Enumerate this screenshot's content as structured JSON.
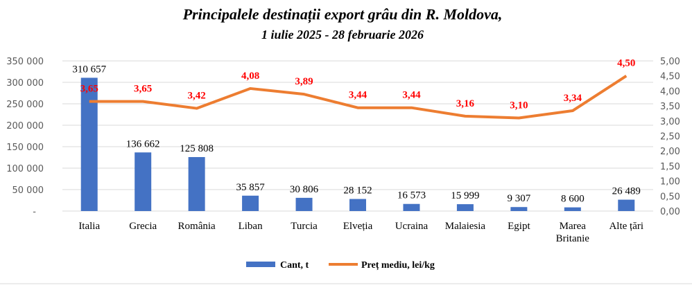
{
  "chart_data": {
    "type": "bar",
    "title": "Principalele destinații export grâu din R. Moldova,",
    "subtitle": "1 iulie 2025 - 28 februarie 2026",
    "categories": [
      [
        "Italia"
      ],
      [
        "Grecia"
      ],
      [
        "România"
      ],
      [
        "Liban"
      ],
      [
        "Turcia"
      ],
      [
        "Elveția"
      ],
      [
        "Ucraina"
      ],
      [
        "Malaiesia"
      ],
      [
        "Egipt"
      ],
      [
        "Marea",
        "Britanie"
      ],
      [
        "Alte țări"
      ]
    ],
    "series": [
      {
        "name": "Cant, t",
        "type": "bar",
        "axis": "left",
        "color": "#4472c4",
        "values": [
          310657,
          136662,
          125808,
          35857,
          30806,
          28152,
          16573,
          15999,
          9307,
          8600,
          26489
        ],
        "labels": [
          "310 657",
          "136 662",
          "125 808",
          "35 857",
          "30 806",
          "28 152",
          "16 573",
          "15 999",
          "9 307",
          "8 600",
          "26 489"
        ]
      },
      {
        "name": "Preț mediu, lei/kg",
        "type": "line",
        "axis": "right",
        "color": "#ed7d31",
        "values": [
          3.65,
          3.65,
          3.42,
          4.08,
          3.89,
          3.44,
          3.44,
          3.16,
          3.1,
          3.34,
          4.5
        ],
        "labels": [
          "3,65",
          "3,65",
          "3,42",
          "4,08",
          "3,89",
          "3,44",
          "3,44",
          "3,16",
          "3,10",
          "3,34",
          "4,50"
        ]
      }
    ],
    "y_left": {
      "range": [
        0,
        350000
      ],
      "ticks": [
        "-",
        "50 000",
        "100 000",
        "150 000",
        "200 000",
        "250 000",
        "300 000",
        "350 000"
      ]
    },
    "y_right": {
      "range": [
        0,
        5
      ],
      "ticks": [
        "0,00",
        "0,50",
        "1,00",
        "1,50",
        "2,00",
        "2,50",
        "3,00",
        "3,50",
        "4,00",
        "4,50",
        "5,00"
      ]
    },
    "grid": true,
    "legend": "bottom"
  }
}
